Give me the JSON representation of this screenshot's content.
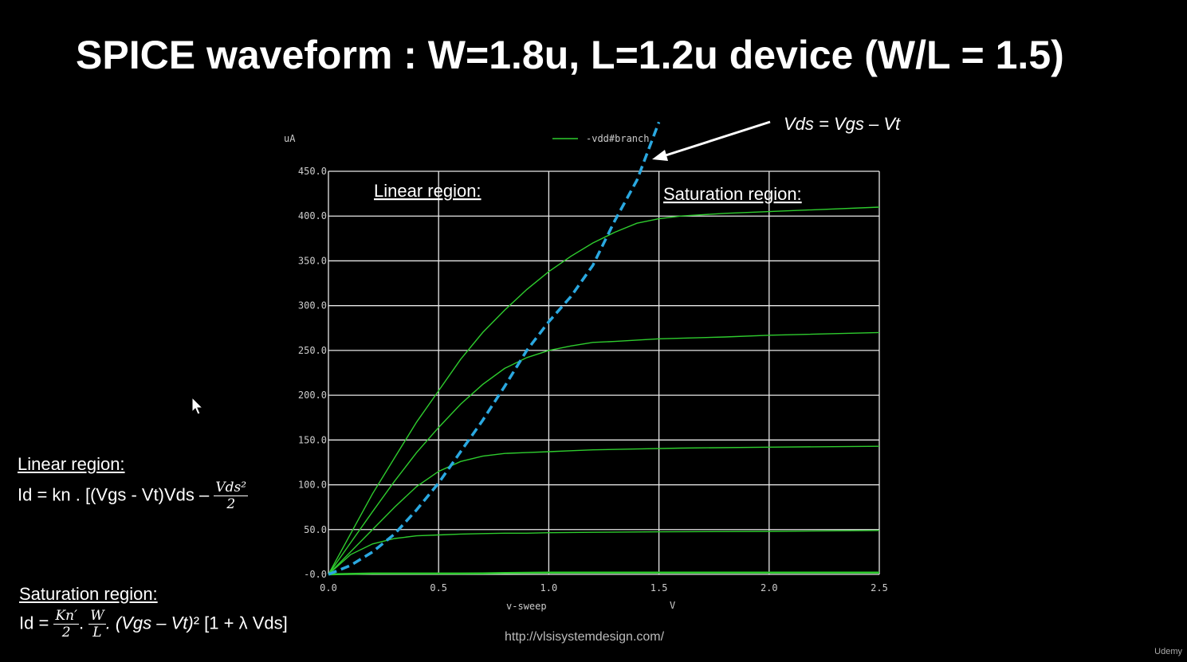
{
  "title": "SPICE waveform : W=1.8u, L=1.2u device (W/L = 1.5)",
  "chart_data": {
    "type": "line",
    "yunit": "uA",
    "xlabel": "v-sweep",
    "xunit": "V",
    "xlim": [
      0,
      2.5
    ],
    "ylim": [
      0,
      450
    ],
    "xticks": [
      0,
      0.5,
      1.0,
      1.5,
      2.0,
      2.5
    ],
    "xtick_labels": [
      "0.0",
      "0.5",
      "1.0",
      "1.5",
      "2.0",
      "2.5"
    ],
    "yticks": [
      0,
      50,
      100,
      150,
      200,
      250,
      300,
      350,
      400,
      450
    ],
    "ytick_labels": [
      "-0.0",
      "50.0",
      "100.0",
      "150.0",
      "200.0",
      "250.0",
      "300.0",
      "350.0",
      "400.0",
      "450.0"
    ],
    "grid": true,
    "legend": "-vdd#branch",
    "legend_position": "top",
    "series": [
      {
        "color": "#2ecc2e",
        "x": [
          0,
          0.1,
          0.2,
          0.3,
          0.4,
          0.5,
          0.6,
          0.7,
          0.8,
          0.9,
          1.0,
          1.1,
          1.2,
          1.3,
          1.4,
          1.5,
          1.6,
          1.8,
          2.0,
          2.2,
          2.5
        ],
        "y": [
          0,
          0.5,
          1,
          1,
          1,
          1,
          1,
          1.2,
          1.5,
          1.8,
          2,
          2,
          2,
          2,
          2,
          2,
          2,
          2,
          2,
          2,
          2
        ]
      },
      {
        "color": "#2ecc2e",
        "x": [
          0,
          0.1,
          0.2,
          0.3,
          0.4,
          0.5,
          0.6,
          0.7,
          0.8,
          0.9,
          1.0,
          1.2,
          1.5,
          2.0,
          2.5
        ],
        "y": [
          0,
          22,
          34,
          40,
          43,
          44,
          45,
          45.5,
          46,
          46,
          46.5,
          47,
          47.5,
          48,
          49
        ]
      },
      {
        "color": "#2ecc2e",
        "x": [
          0,
          0.1,
          0.2,
          0.3,
          0.4,
          0.5,
          0.6,
          0.7,
          0.8,
          0.9,
          1.0,
          1.1,
          1.2,
          1.4,
          1.6,
          2.0,
          2.5
        ],
        "y": [
          0,
          25,
          50,
          75,
          98,
          115,
          126,
          132,
          135,
          136,
          137,
          138,
          139,
          140,
          141,
          142,
          143
        ]
      },
      {
        "color": "#2ecc2e",
        "x": [
          0,
          0.1,
          0.2,
          0.3,
          0.4,
          0.5,
          0.6,
          0.7,
          0.8,
          0.9,
          1.0,
          1.1,
          1.2,
          1.3,
          1.5,
          1.8,
          2.0,
          2.5
        ],
        "y": [
          0,
          35,
          70,
          104,
          136,
          164,
          190,
          212,
          230,
          242,
          250,
          255,
          259,
          260,
          263,
          265,
          267,
          270
        ]
      },
      {
        "color": "#2ecc2e",
        "x": [
          0,
          0.1,
          0.2,
          0.3,
          0.4,
          0.5,
          0.6,
          0.7,
          0.8,
          0.9,
          1.0,
          1.1,
          1.2,
          1.3,
          1.4,
          1.5,
          1.6,
          1.8,
          2.0,
          2.5
        ],
        "y": [
          0,
          45,
          90,
          130,
          170,
          205,
          240,
          270,
          295,
          318,
          338,
          355,
          370,
          382,
          392,
          397,
          400,
          403,
          405,
          410
        ]
      }
    ],
    "annotations": [
      {
        "text": "Vds = Vgs – Vt",
        "type": "dashed-line",
        "x": [
          0,
          0.1,
          0.2,
          0.3,
          0.4,
          0.5,
          0.6,
          0.7,
          0.8,
          0.9,
          1.0,
          1.1,
          1.2,
          1.3,
          1.4,
          1.5
        ],
        "y": [
          0,
          10,
          25,
          45,
          72,
          102,
          137,
          172,
          210,
          250,
          282,
          310,
          345,
          395,
          440,
          505
        ]
      },
      {
        "text": "Linear region:"
      },
      {
        "text": "Saturation region:"
      }
    ]
  },
  "equations": {
    "linear_heading": "Linear region:",
    "linear_lhs": "Id = kn . [(Vgs - Vt)Vds –",
    "linear_frac_num": "Vds²",
    "linear_frac_den": "2",
    "sat_heading": "Saturation region:",
    "sat_lhs": "Id =",
    "sat_frac1_num": "Kn′",
    "sat_frac1_den": "2",
    "sat_dot1": ".",
    "sat_frac2_num": "W",
    "sat_frac2_den": "L",
    "sat_rest_italic": ". (Vgs – Vt)",
    "sat_rest": "² [1 + λ Vds]"
  },
  "website": "http://vlsisystemdesign.com/",
  "brand": "Udemy"
}
